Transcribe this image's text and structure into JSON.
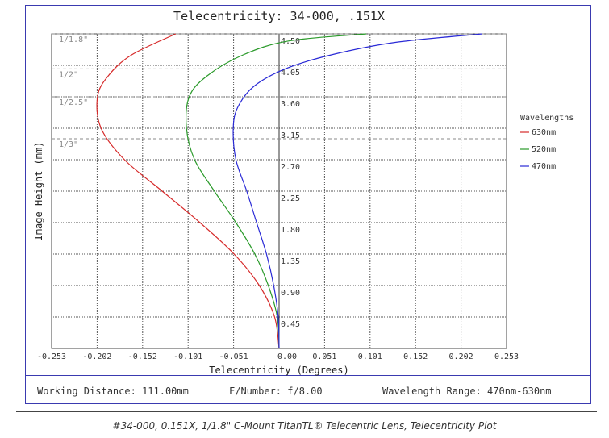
{
  "chart_data": {
    "type": "line",
    "title": "Telecentricity: 34-000, .151X",
    "xlabel": "Telecentricity (Degrees)",
    "ylabel": "Image Height (mm)",
    "xlim": [
      -0.253,
      0.253
    ],
    "ylim": [
      0,
      4.5
    ],
    "x_ticks": [
      "-0.253",
      "-0.202",
      "-0.152",
      "-0.101",
      "-0.051",
      "0.00",
      "0.051",
      "0.101",
      "0.152",
      "0.202",
      "0.253"
    ],
    "y_ticks": [
      "0.45",
      "0.90",
      "1.35",
      "1.80",
      "2.25",
      "2.70",
      "3.15",
      "3.60",
      "4.05",
      "4.50"
    ],
    "grid": true,
    "legend_title": "Wavelengths",
    "legend_placement": "right",
    "sensor_formats": [
      {
        "label": "1/1.8\"",
        "height": 4.5
      },
      {
        "label": "1/2\"",
        "height": 4.0
      },
      {
        "label": "1/2.5\"",
        "height": 3.6
      },
      {
        "label": "1/3\"",
        "height": 3.0
      }
    ],
    "series": [
      {
        "name": "630nm",
        "color": "#d62a2a",
        "points": [
          [
            0,
            0
          ],
          [
            -0.005,
            0.45
          ],
          [
            -0.022,
            0.9
          ],
          [
            -0.05,
            1.35
          ],
          [
            -0.088,
            1.8
          ],
          [
            -0.13,
            2.25
          ],
          [
            -0.172,
            2.7
          ],
          [
            -0.198,
            3.15
          ],
          [
            -0.202,
            3.6
          ],
          [
            -0.19,
            3.9
          ],
          [
            -0.164,
            4.2
          ],
          [
            -0.115,
            4.5
          ]
        ]
      },
      {
        "name": "520nm",
        "color": "#2a9a2a",
        "points": [
          [
            0,
            0
          ],
          [
            -0.002,
            0.45
          ],
          [
            -0.012,
            0.9
          ],
          [
            -0.027,
            1.35
          ],
          [
            -0.048,
            1.8
          ],
          [
            -0.072,
            2.25
          ],
          [
            -0.094,
            2.7
          ],
          [
            -0.103,
            3.15
          ],
          [
            -0.1,
            3.6
          ],
          [
            -0.08,
            3.9
          ],
          [
            -0.04,
            4.2
          ],
          [
            0.011,
            4.4
          ],
          [
            0.097,
            4.5
          ]
        ]
      },
      {
        "name": "470nm",
        "color": "#2a2ad6",
        "points": [
          [
            0,
            0
          ],
          [
            -0.001,
            0.45
          ],
          [
            -0.006,
            0.9
          ],
          [
            -0.014,
            1.35
          ],
          [
            -0.025,
            1.8
          ],
          [
            -0.036,
            2.25
          ],
          [
            -0.048,
            2.7
          ],
          [
            -0.051,
            3.15
          ],
          [
            -0.046,
            3.45
          ],
          [
            -0.028,
            3.75
          ],
          [
            0.007,
            4.0
          ],
          [
            0.058,
            4.2
          ],
          [
            0.13,
            4.38
          ],
          [
            0.226,
            4.5
          ]
        ]
      }
    ]
  },
  "info": {
    "working_distance": "Working Distance: 111.00mm",
    "f_number": "F/Number: f/8.00",
    "wavelength_range": "Wavelength Range: 470nm-630nm"
  },
  "caption": "#34-000, 0.151X, 1/1.8\" C-Mount TitanTL® Telecentric Lens, Telecentricity Plot"
}
